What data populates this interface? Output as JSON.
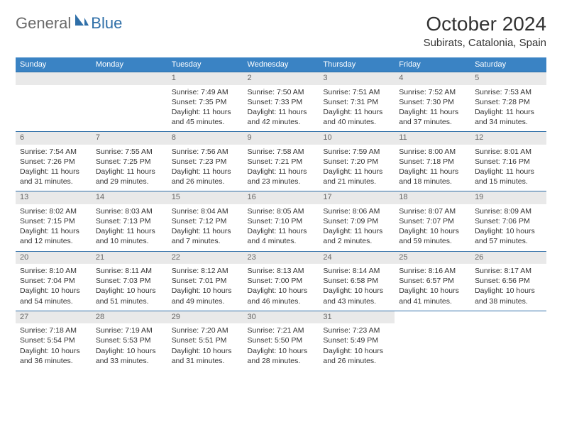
{
  "brand": {
    "general": "General",
    "blue": "Blue"
  },
  "title": "October 2024",
  "location": "Subirats, Catalonia, Spain",
  "colors": {
    "header_bg": "#3a83c4",
    "daynum_bg": "#e9e9e9",
    "rule": "#2f6fa8",
    "text": "#333333",
    "muted": "#666666"
  },
  "dow": [
    "Sunday",
    "Monday",
    "Tuesday",
    "Wednesday",
    "Thursday",
    "Friday",
    "Saturday"
  ],
  "weeks": [
    [
      null,
      null,
      {
        "n": "1",
        "sr": "Sunrise: 7:49 AM",
        "ss": "Sunset: 7:35 PM",
        "dl1": "Daylight: 11 hours",
        "dl2": "and 45 minutes."
      },
      {
        "n": "2",
        "sr": "Sunrise: 7:50 AM",
        "ss": "Sunset: 7:33 PM",
        "dl1": "Daylight: 11 hours",
        "dl2": "and 42 minutes."
      },
      {
        "n": "3",
        "sr": "Sunrise: 7:51 AM",
        "ss": "Sunset: 7:31 PM",
        "dl1": "Daylight: 11 hours",
        "dl2": "and 40 minutes."
      },
      {
        "n": "4",
        "sr": "Sunrise: 7:52 AM",
        "ss": "Sunset: 7:30 PM",
        "dl1": "Daylight: 11 hours",
        "dl2": "and 37 minutes."
      },
      {
        "n": "5",
        "sr": "Sunrise: 7:53 AM",
        "ss": "Sunset: 7:28 PM",
        "dl1": "Daylight: 11 hours",
        "dl2": "and 34 minutes."
      }
    ],
    [
      {
        "n": "6",
        "sr": "Sunrise: 7:54 AM",
        "ss": "Sunset: 7:26 PM",
        "dl1": "Daylight: 11 hours",
        "dl2": "and 31 minutes."
      },
      {
        "n": "7",
        "sr": "Sunrise: 7:55 AM",
        "ss": "Sunset: 7:25 PM",
        "dl1": "Daylight: 11 hours",
        "dl2": "and 29 minutes."
      },
      {
        "n": "8",
        "sr": "Sunrise: 7:56 AM",
        "ss": "Sunset: 7:23 PM",
        "dl1": "Daylight: 11 hours",
        "dl2": "and 26 minutes."
      },
      {
        "n": "9",
        "sr": "Sunrise: 7:58 AM",
        "ss": "Sunset: 7:21 PM",
        "dl1": "Daylight: 11 hours",
        "dl2": "and 23 minutes."
      },
      {
        "n": "10",
        "sr": "Sunrise: 7:59 AM",
        "ss": "Sunset: 7:20 PM",
        "dl1": "Daylight: 11 hours",
        "dl2": "and 21 minutes."
      },
      {
        "n": "11",
        "sr": "Sunrise: 8:00 AM",
        "ss": "Sunset: 7:18 PM",
        "dl1": "Daylight: 11 hours",
        "dl2": "and 18 minutes."
      },
      {
        "n": "12",
        "sr": "Sunrise: 8:01 AM",
        "ss": "Sunset: 7:16 PM",
        "dl1": "Daylight: 11 hours",
        "dl2": "and 15 minutes."
      }
    ],
    [
      {
        "n": "13",
        "sr": "Sunrise: 8:02 AM",
        "ss": "Sunset: 7:15 PM",
        "dl1": "Daylight: 11 hours",
        "dl2": "and 12 minutes."
      },
      {
        "n": "14",
        "sr": "Sunrise: 8:03 AM",
        "ss": "Sunset: 7:13 PM",
        "dl1": "Daylight: 11 hours",
        "dl2": "and 10 minutes."
      },
      {
        "n": "15",
        "sr": "Sunrise: 8:04 AM",
        "ss": "Sunset: 7:12 PM",
        "dl1": "Daylight: 11 hours",
        "dl2": "and 7 minutes."
      },
      {
        "n": "16",
        "sr": "Sunrise: 8:05 AM",
        "ss": "Sunset: 7:10 PM",
        "dl1": "Daylight: 11 hours",
        "dl2": "and 4 minutes."
      },
      {
        "n": "17",
        "sr": "Sunrise: 8:06 AM",
        "ss": "Sunset: 7:09 PM",
        "dl1": "Daylight: 11 hours",
        "dl2": "and 2 minutes."
      },
      {
        "n": "18",
        "sr": "Sunrise: 8:07 AM",
        "ss": "Sunset: 7:07 PM",
        "dl1": "Daylight: 10 hours",
        "dl2": "and 59 minutes."
      },
      {
        "n": "19",
        "sr": "Sunrise: 8:09 AM",
        "ss": "Sunset: 7:06 PM",
        "dl1": "Daylight: 10 hours",
        "dl2": "and 57 minutes."
      }
    ],
    [
      {
        "n": "20",
        "sr": "Sunrise: 8:10 AM",
        "ss": "Sunset: 7:04 PM",
        "dl1": "Daylight: 10 hours",
        "dl2": "and 54 minutes."
      },
      {
        "n": "21",
        "sr": "Sunrise: 8:11 AM",
        "ss": "Sunset: 7:03 PM",
        "dl1": "Daylight: 10 hours",
        "dl2": "and 51 minutes."
      },
      {
        "n": "22",
        "sr": "Sunrise: 8:12 AM",
        "ss": "Sunset: 7:01 PM",
        "dl1": "Daylight: 10 hours",
        "dl2": "and 49 minutes."
      },
      {
        "n": "23",
        "sr": "Sunrise: 8:13 AM",
        "ss": "Sunset: 7:00 PM",
        "dl1": "Daylight: 10 hours",
        "dl2": "and 46 minutes."
      },
      {
        "n": "24",
        "sr": "Sunrise: 8:14 AM",
        "ss": "Sunset: 6:58 PM",
        "dl1": "Daylight: 10 hours",
        "dl2": "and 43 minutes."
      },
      {
        "n": "25",
        "sr": "Sunrise: 8:16 AM",
        "ss": "Sunset: 6:57 PM",
        "dl1": "Daylight: 10 hours",
        "dl2": "and 41 minutes."
      },
      {
        "n": "26",
        "sr": "Sunrise: 8:17 AM",
        "ss": "Sunset: 6:56 PM",
        "dl1": "Daylight: 10 hours",
        "dl2": "and 38 minutes."
      }
    ],
    [
      {
        "n": "27",
        "sr": "Sunrise: 7:18 AM",
        "ss": "Sunset: 5:54 PM",
        "dl1": "Daylight: 10 hours",
        "dl2": "and 36 minutes."
      },
      {
        "n": "28",
        "sr": "Sunrise: 7:19 AM",
        "ss": "Sunset: 5:53 PM",
        "dl1": "Daylight: 10 hours",
        "dl2": "and 33 minutes."
      },
      {
        "n": "29",
        "sr": "Sunrise: 7:20 AM",
        "ss": "Sunset: 5:51 PM",
        "dl1": "Daylight: 10 hours",
        "dl2": "and 31 minutes."
      },
      {
        "n": "30",
        "sr": "Sunrise: 7:21 AM",
        "ss": "Sunset: 5:50 PM",
        "dl1": "Daylight: 10 hours",
        "dl2": "and 28 minutes."
      },
      {
        "n": "31",
        "sr": "Sunrise: 7:23 AM",
        "ss": "Sunset: 5:49 PM",
        "dl1": "Daylight: 10 hours",
        "dl2": "and 26 minutes."
      },
      null,
      null
    ]
  ]
}
